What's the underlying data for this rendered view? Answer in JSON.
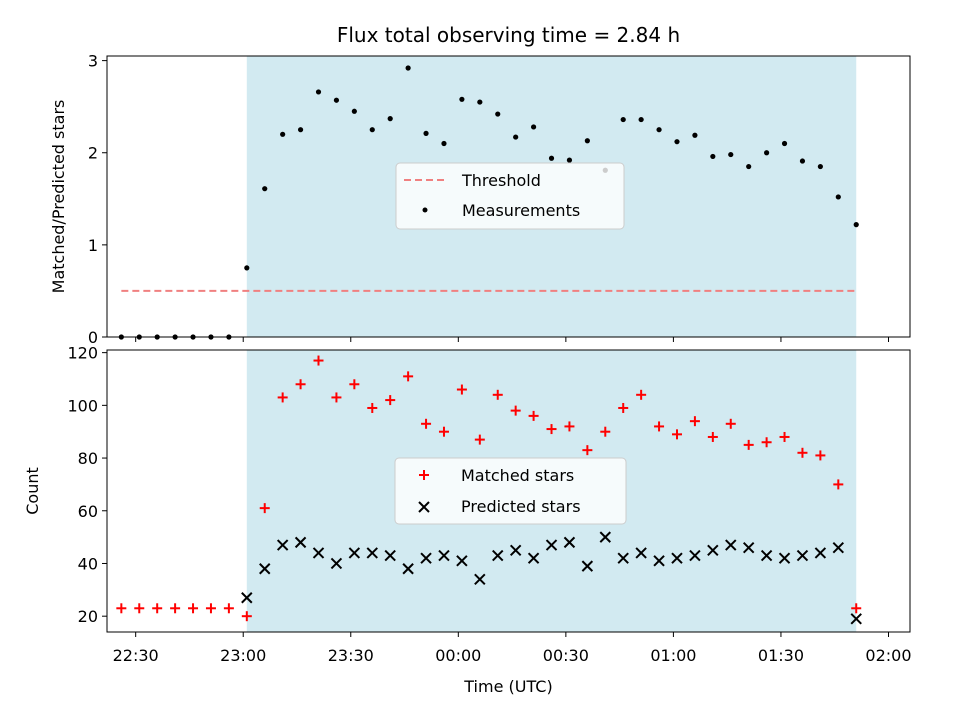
{
  "chart_data": [
    {
      "type": "scatter",
      "title": "Flux total observing time = 2.84 h",
      "ylabel": "Matched/Predicted stars",
      "xlabel": "",
      "xlim": [
        "22:22",
        "02:06"
      ],
      "ylim": [
        0,
        3.05
      ],
      "yticks": [
        0,
        1,
        2,
        3
      ],
      "highlight_span": [
        "23:01",
        "01:51"
      ],
      "highlight_color": "#add8e6",
      "legend_placement": "center",
      "legend": [
        "Threshold",
        "Measurements"
      ],
      "series": [
        {
          "name": "Threshold",
          "style": "dashed-line",
          "color": "#f08080",
          "x": [
            "22:26",
            "01:51"
          ],
          "y": [
            0.5,
            0.5
          ]
        },
        {
          "name": "Measurements",
          "style": "dot",
          "color": "#000000",
          "x": [
            "22:26",
            "22:31",
            "22:36",
            "22:41",
            "22:46",
            "22:51",
            "22:56",
            "23:01",
            "23:06",
            "23:11",
            "23:16",
            "23:21",
            "23:26",
            "23:31",
            "23:36",
            "23:41",
            "23:46",
            "23:51",
            "23:56",
            "00:01",
            "00:06",
            "00:11",
            "00:16",
            "00:21",
            "00:26",
            "00:31",
            "00:36",
            "00:41",
            "00:46",
            "00:51",
            "00:56",
            "01:01",
            "01:06",
            "01:11",
            "01:16",
            "01:21",
            "01:26",
            "01:31",
            "01:36",
            "01:41",
            "01:46",
            "01:51"
          ],
          "y": [
            0,
            0,
            0,
            0,
            0,
            0,
            0,
            0.75,
            1.61,
            2.2,
            2.25,
            2.66,
            2.57,
            2.45,
            2.25,
            2.37,
            2.92,
            2.21,
            2.1,
            2.58,
            2.55,
            2.42,
            2.17,
            2.28,
            1.94,
            1.92,
            2.13,
            1.81,
            2.36,
            2.36,
            2.25,
            2.12,
            2.19,
            1.96,
            1.98,
            1.85,
            2.0,
            2.1,
            1.91,
            1.85,
            1.52,
            1.22
          ]
        }
      ]
    },
    {
      "type": "scatter",
      "xlabel": "Time (UTC)",
      "ylabel": "Count",
      "xlim": [
        "22:22",
        "02:06"
      ],
      "xticks": [
        "22:30",
        "23:00",
        "23:30",
        "00:00",
        "00:30",
        "01:00",
        "01:30",
        "02:00"
      ],
      "ylim": [
        14,
        121
      ],
      "yticks": [
        20,
        40,
        60,
        80,
        100,
        120
      ],
      "highlight_span": [
        "23:01",
        "01:51"
      ],
      "highlight_color": "#add8e6",
      "legend_placement": "center",
      "legend": [
        "Matched stars",
        "Predicted stars"
      ],
      "series": [
        {
          "name": "Matched stars",
          "marker": "plus",
          "color": "#ff0000",
          "x": [
            "22:26",
            "22:31",
            "22:36",
            "22:41",
            "22:46",
            "22:51",
            "22:56",
            "23:01",
            "23:06",
            "23:11",
            "23:16",
            "23:21",
            "23:26",
            "23:31",
            "23:36",
            "23:41",
            "23:46",
            "23:51",
            "23:56",
            "00:01",
            "00:06",
            "00:11",
            "00:16",
            "00:21",
            "00:26",
            "00:31",
            "00:36",
            "00:41",
            "00:46",
            "00:51",
            "00:56",
            "01:01",
            "01:06",
            "01:11",
            "01:16",
            "01:21",
            "01:26",
            "01:31",
            "01:36",
            "01:41",
            "01:46",
            "01:51"
          ],
          "y": [
            23,
            23,
            23,
            23,
            23,
            23,
            23,
            20,
            61,
            103,
            108,
            117,
            103,
            108,
            99,
            102,
            111,
            93,
            90,
            106,
            87,
            104,
            98,
            96,
            91,
            92,
            83,
            90,
            99,
            104,
            92,
            89,
            94,
            88,
            93,
            85,
            86,
            88,
            82,
            81,
            70,
            23
          ]
        },
        {
          "name": "Predicted stars",
          "marker": "x",
          "color": "#000000",
          "x": [
            "23:01",
            "23:06",
            "23:11",
            "23:16",
            "23:21",
            "23:26",
            "23:31",
            "23:36",
            "23:41",
            "23:46",
            "23:51",
            "23:56",
            "00:01",
            "00:06",
            "00:11",
            "00:16",
            "00:21",
            "00:26",
            "00:31",
            "00:36",
            "00:41",
            "00:46",
            "00:51",
            "00:56",
            "01:01",
            "01:06",
            "01:11",
            "01:16",
            "01:21",
            "01:26",
            "01:31",
            "01:36",
            "01:41",
            "01:46",
            "01:51"
          ],
          "y": [
            27,
            38,
            47,
            48,
            44,
            40,
            44,
            44,
            43,
            38,
            42,
            43,
            41,
            34,
            43,
            45,
            42,
            47,
            48,
            39,
            50,
            42,
            44,
            41,
            42,
            43,
            45,
            47,
            46,
            43,
            42,
            43,
            44,
            46,
            19
          ]
        }
      ]
    }
  ]
}
